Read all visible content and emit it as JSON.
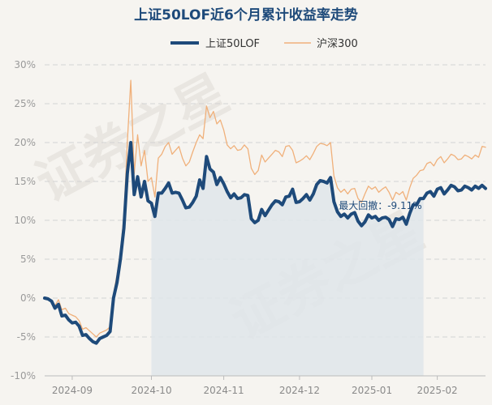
{
  "chart_data": {
    "type": "line",
    "title": "上证50LOF近6个月累计收益率走势",
    "y_tick_labels": [
      "30%",
      "25%",
      "20%",
      "15%",
      "10%",
      "5%",
      "0%",
      "-5%",
      "-10%"
    ],
    "y_tick_values": [
      30,
      25,
      20,
      15,
      10,
      5,
      0,
      -5,
      -10
    ],
    "ylim": [
      -10,
      30
    ],
    "grid": true,
    "legend_position": "top-center",
    "x_tick_labels": [
      "2024-09",
      "2024-10",
      "2024-11",
      "2024-12",
      "2025-01",
      "2025-02"
    ],
    "x_tick_positions": [
      8,
      31,
      52,
      74,
      95,
      114
    ],
    "x_range": [
      0,
      128
    ],
    "annotation": {
      "text": "最大回撤：-9.11%",
      "x": 110
    },
    "max_drawdown_period": {
      "start": 31,
      "end": 110
    },
    "colors": {
      "series_main": "#1e4a7a",
      "series_benchmark": "#f0b07a",
      "drawdown_fill": "#dfe5ea",
      "grid": "#d3d3d3"
    },
    "watermark": [
      "证券之星",
      "证券之星"
    ],
    "series": [
      {
        "name": "上证50LOF",
        "values": [
          0,
          -0.1,
          -0.4,
          -1.3,
          -0.8,
          -2.3,
          -2.2,
          -2.8,
          -3.2,
          -3.1,
          -3.6,
          -4.8,
          -4.7,
          -5.2,
          -5.6,
          -5.8,
          -5.2,
          -5,
          -4.8,
          -4.3,
          0,
          2,
          5,
          9,
          16,
          20,
          13.3,
          15.6,
          13,
          15,
          12.5,
          12.2,
          10.5,
          13.5,
          13.5,
          14.1,
          14.8,
          13.5,
          13.6,
          13.5,
          12.6,
          11.6,
          11.7,
          12.3,
          13.1,
          15.2,
          14.1,
          18.2,
          16.6,
          16.2,
          14.6,
          15.5,
          14.7,
          13.7,
          12.9,
          13.4,
          12.8,
          12.9,
          13.3,
          13.2,
          10.2,
          9.7,
          10,
          11.4,
          10.6,
          11.3,
          12,
          12.5,
          12.4,
          12,
          13,
          13.1,
          14,
          12.3,
          12.4,
          12.8,
          13.3,
          12.6,
          13.4,
          14.6,
          15.1,
          15,
          14.8,
          15.5,
          12.4,
          11.1,
          10.5,
          10.8,
          10.3,
          10.8,
          11,
          9.9,
          9.3,
          9.8,
          10.7,
          10.3,
          10.5,
          10,
          10.3,
          10.4,
          10.1,
          9.2,
          10.2,
          10.1,
          10.4,
          9.5,
          10.9,
          12,
          12,
          12.8,
          12.8,
          13.5,
          13.7,
          13.1,
          14,
          14.2,
          13.4,
          13.9,
          14.5,
          14.3,
          13.8,
          13.9,
          14.4,
          14.2,
          13.9,
          14.4,
          14.1,
          14.5,
          14.1
        ]
      },
      {
        "name": "沪深300",
        "values": [
          0,
          0,
          -0.3,
          -1,
          -0.2,
          -1.5,
          -1.3,
          -2,
          -2.2,
          -2.4,
          -2.9,
          -4,
          -3.8,
          -4.2,
          -4.6,
          -5,
          -4.5,
          -4.3,
          -4.1,
          -3.7,
          0.5,
          3,
          6,
          10.5,
          20,
          28,
          16,
          21,
          17,
          19,
          15,
          15.5,
          13,
          18,
          18.5,
          19.5,
          20,
          18.5,
          19,
          19.5,
          18,
          17,
          17.5,
          18.8,
          20,
          21,
          20.5,
          24.7,
          23.2,
          24,
          22.4,
          22.9,
          21.6,
          19.7,
          19.2,
          19.6,
          19,
          19.1,
          19.7,
          19.2,
          16.7,
          15.9,
          16.4,
          18.4,
          17.5,
          18,
          18.5,
          19,
          18.8,
          18.2,
          19.5,
          19.6,
          19,
          17.4,
          17.6,
          17.9,
          18.3,
          17.8,
          18.6,
          19.5,
          19.9,
          19.8,
          19.6,
          20,
          15.7,
          14.2,
          13.6,
          14,
          13.4,
          14,
          14.1,
          12.8,
          12.3,
          13.4,
          14.4,
          14,
          14.3,
          13.6,
          14,
          14.3,
          13.6,
          12.6,
          13.6,
          13.3,
          13.7,
          12.6,
          14.2,
          15.4,
          15.8,
          16.4,
          16.5,
          17.3,
          17.5,
          17,
          17.8,
          18.2,
          17.4,
          17.9,
          18.5,
          18.3,
          17.8,
          17.9,
          18.4,
          18.2,
          17.9,
          18.4,
          18.1,
          19.5,
          19.4
        ]
      }
    ]
  }
}
